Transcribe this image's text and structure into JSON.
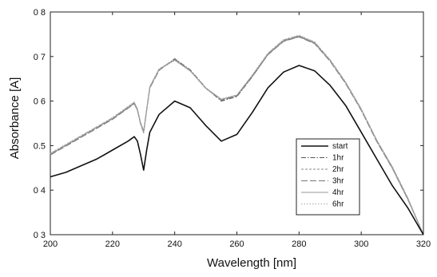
{
  "chart_data": {
    "type": "line",
    "xlabel": "Wavelength [nm]",
    "ylabel": "Absorbance [A]",
    "xlim": [
      200,
      320
    ],
    "ylim": [
      0.3,
      0.8
    ],
    "xticks": [
      200,
      220,
      240,
      260,
      280,
      300,
      320
    ],
    "yticks": [
      0.3,
      0.4,
      0.5,
      0.6,
      0.7,
      0.8
    ],
    "ytick_labels": [
      "0 3",
      "0 4",
      "0.5",
      "0 6",
      "0 7",
      "0 8"
    ],
    "grid": false,
    "legend_position": "lower-right",
    "series": [
      {
        "name": "start",
        "color": "#111111",
        "dash": "",
        "x": [
          200,
          205,
          210,
          215,
          220,
          225,
          227,
          228,
          229,
          230,
          231,
          232,
          235,
          240,
          245,
          250,
          255,
          260,
          265,
          270,
          275,
          280,
          285,
          290,
          295,
          300,
          305,
          310,
          315,
          320
        ],
        "y": [
          0.43,
          0.44,
          0.455,
          0.47,
          0.49,
          0.51,
          0.52,
          0.51,
          0.48,
          0.445,
          0.49,
          0.53,
          0.57,
          0.6,
          0.585,
          0.545,
          0.51,
          0.525,
          0.575,
          0.63,
          0.665,
          0.68,
          0.668,
          0.635,
          0.59,
          0.53,
          0.47,
          0.41,
          0.36,
          0.3
        ]
      },
      {
        "name": "1hr",
        "color": "#555555",
        "dash": "6 2 1.5 2",
        "x": [
          200,
          205,
          210,
          215,
          220,
          225,
          227,
          228,
          229,
          230,
          231,
          232,
          235,
          240,
          245,
          250,
          255,
          260,
          265,
          270,
          275,
          280,
          285,
          290,
          295,
          300,
          305,
          310,
          315,
          320
        ],
        "y": [
          0.48,
          0.5,
          0.52,
          0.54,
          0.56,
          0.585,
          0.595,
          0.58,
          0.55,
          0.53,
          0.58,
          0.63,
          0.67,
          0.695,
          0.67,
          0.63,
          0.6,
          0.61,
          0.655,
          0.705,
          0.735,
          0.745,
          0.73,
          0.69,
          0.64,
          0.58,
          0.51,
          0.45,
          0.38,
          0.3
        ]
      },
      {
        "name": "2hr",
        "color": "#888888",
        "dash": "3 2",
        "x": [
          200,
          205,
          210,
          215,
          220,
          225,
          227,
          228,
          229,
          230,
          231,
          232,
          235,
          240,
          245,
          250,
          255,
          260,
          265,
          270,
          275,
          280,
          285,
          290,
          295,
          300,
          305,
          310,
          315,
          320
        ],
        "y": [
          0.482,
          0.502,
          0.522,
          0.542,
          0.562,
          0.587,
          0.597,
          0.582,
          0.552,
          0.532,
          0.582,
          0.632,
          0.672,
          0.693,
          0.668,
          0.628,
          0.603,
          0.612,
          0.657,
          0.707,
          0.737,
          0.747,
          0.732,
          0.692,
          0.642,
          0.582,
          0.512,
          0.452,
          0.382,
          0.3
        ]
      },
      {
        "name": "3hr",
        "color": "#777777",
        "dash": "8 3",
        "x": [
          200,
          205,
          210,
          215,
          220,
          225,
          227,
          228,
          229,
          230,
          231,
          232,
          235,
          240,
          245,
          250,
          255,
          260,
          265,
          270,
          275,
          280,
          285,
          290,
          295,
          300,
          305,
          310,
          315,
          320
        ],
        "y": [
          0.479,
          0.499,
          0.519,
          0.539,
          0.559,
          0.584,
          0.594,
          0.579,
          0.549,
          0.529,
          0.579,
          0.629,
          0.669,
          0.694,
          0.669,
          0.629,
          0.602,
          0.611,
          0.656,
          0.704,
          0.734,
          0.744,
          0.729,
          0.689,
          0.639,
          0.579,
          0.509,
          0.449,
          0.379,
          0.3
        ]
      },
      {
        "name": "4hr",
        "color": "#999999",
        "dash": "",
        "x": [
          200,
          205,
          210,
          215,
          220,
          225,
          227,
          228,
          229,
          230,
          231,
          232,
          235,
          240,
          245,
          250,
          255,
          260,
          265,
          270,
          275,
          280,
          285,
          290,
          295,
          300,
          305,
          310,
          315,
          320
        ],
        "y": [
          0.481,
          0.501,
          0.521,
          0.541,
          0.561,
          0.586,
          0.596,
          0.581,
          0.551,
          0.531,
          0.581,
          0.631,
          0.671,
          0.692,
          0.668,
          0.629,
          0.604,
          0.613,
          0.658,
          0.706,
          0.736,
          0.746,
          0.731,
          0.691,
          0.641,
          0.581,
          0.511,
          0.451,
          0.381,
          0.3
        ]
      },
      {
        "name": "6hr",
        "color": "#aaaaaa",
        "dash": "1.5 2",
        "x": [
          200,
          205,
          210,
          215,
          220,
          225,
          227,
          228,
          229,
          230,
          231,
          232,
          235,
          240,
          245,
          250,
          255,
          260,
          265,
          270,
          275,
          280,
          285,
          290,
          295,
          300,
          305,
          310,
          315,
          320
        ],
        "y": [
          0.483,
          0.503,
          0.523,
          0.543,
          0.563,
          0.588,
          0.598,
          0.583,
          0.553,
          0.533,
          0.583,
          0.633,
          0.673,
          0.691,
          0.667,
          0.63,
          0.605,
          0.614,
          0.659,
          0.708,
          0.738,
          0.748,
          0.733,
          0.693,
          0.643,
          0.583,
          0.513,
          0.453,
          0.383,
          0.3
        ]
      }
    ]
  }
}
